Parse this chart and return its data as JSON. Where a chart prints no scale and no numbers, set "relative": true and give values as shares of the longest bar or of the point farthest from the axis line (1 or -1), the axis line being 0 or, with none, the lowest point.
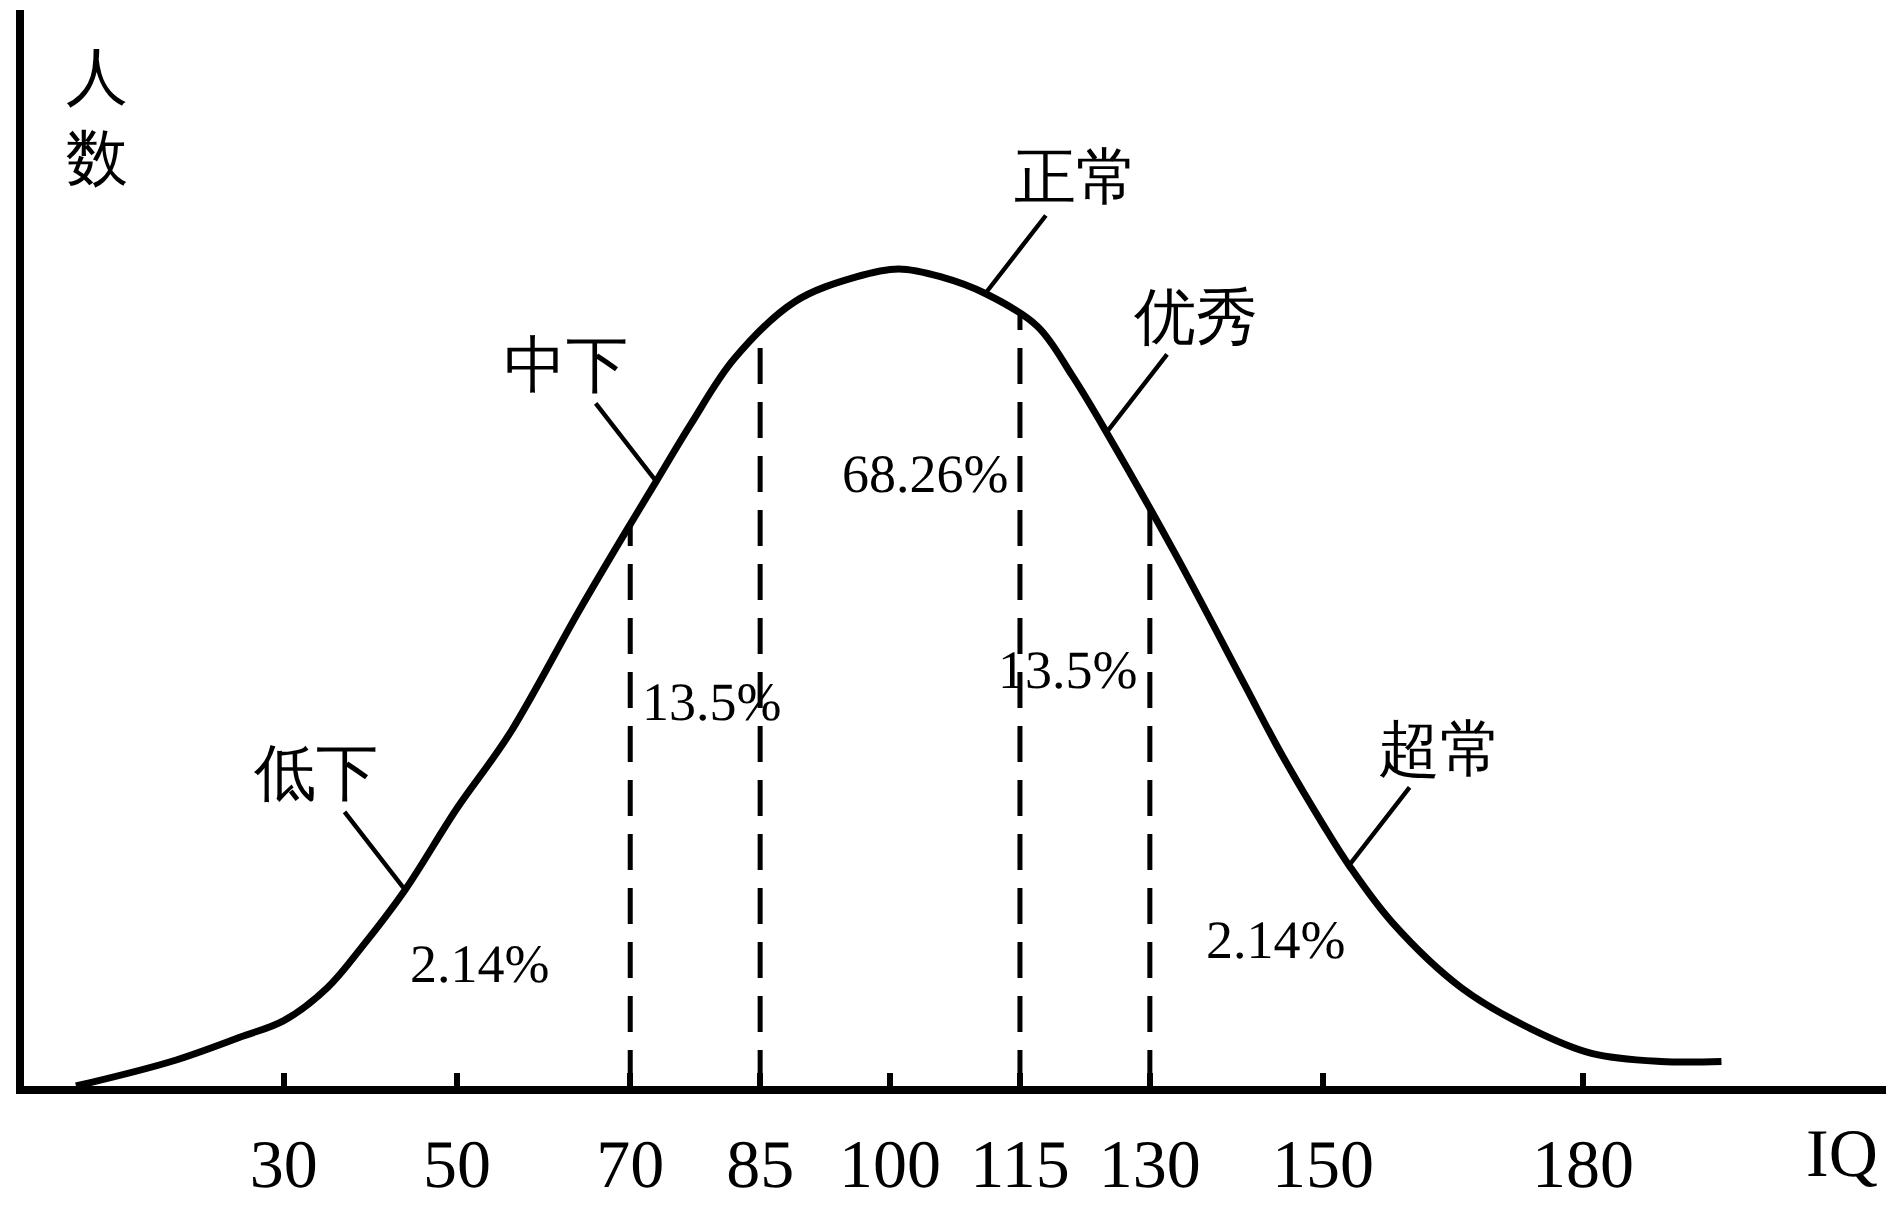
{
  "chart_data": {
    "type": "line",
    "relative": true,
    "xlabel": "IQ",
    "ylabel": "人数",
    "x": [
      6,
      17,
      25,
      30,
      35,
      39,
      44,
      50,
      56,
      64,
      69,
      73,
      77,
      82,
      89,
      96,
      101,
      106,
      111,
      117,
      121,
      125,
      133,
      141,
      145,
      150,
      153,
      158,
      166,
      174,
      181,
      189,
      196
    ],
    "series": [
      {
        "color": "#000000",
        "values": [
          0,
          0.03,
          0.06,
          0.08,
          0.12,
          0.17,
          0.24,
          0.34,
          0.43,
          0.58,
          0.67,
          0.74,
          0.81,
          0.89,
          0.96,
          0.99,
          1,
          0.99,
          0.97,
          0.93,
          0.87,
          0.8,
          0.65,
          0.49,
          0.41,
          0.32,
          0.27,
          0.2,
          0.12,
          0.07,
          0.04,
          0.03,
          0.03
        ]
      }
    ],
    "xlim": [
      0,
      215
    ],
    "xticks": [
      30,
      50,
      70,
      85,
      100,
      115,
      130,
      150,
      180
    ],
    "tick_labels": "x",
    "ref_lines": [
      {
        "axis": "x",
        "value": 70,
        "line_style": "dashed",
        "color": "#000000"
      },
      {
        "axis": "x",
        "value": 85,
        "line_style": "dashed",
        "color": "#000000"
      },
      {
        "axis": "x",
        "value": 115,
        "line_style": "dashed",
        "color": "#000000"
      },
      {
        "axis": "x",
        "value": 130,
        "line_style": "dashed",
        "color": "#000000"
      }
    ],
    "annotations": [
      {
        "text": "正常",
        "x": 111,
        "y": 0.97
      },
      {
        "text": "中下",
        "x": 73,
        "y": 0.74
      },
      {
        "text": "优秀",
        "x": 125,
        "y": 0.8
      },
      {
        "text": "低下",
        "x": 44,
        "y": 0.24
      },
      {
        "text": "超常",
        "x": 153,
        "y": 0.27
      },
      {
        "text": "68.26%",
        "x": 115,
        "y": 0.75
      },
      {
        "text": "13.5%",
        "x": 70,
        "y": 0.47
      },
      {
        "text": "13.5%",
        "x": 130,
        "y": 0.51
      },
      {
        "text": "2.14%",
        "x": 44,
        "y": 0.24
      },
      {
        "text": "2.14%",
        "x": 153,
        "y": 0.27
      }
    ]
  }
}
